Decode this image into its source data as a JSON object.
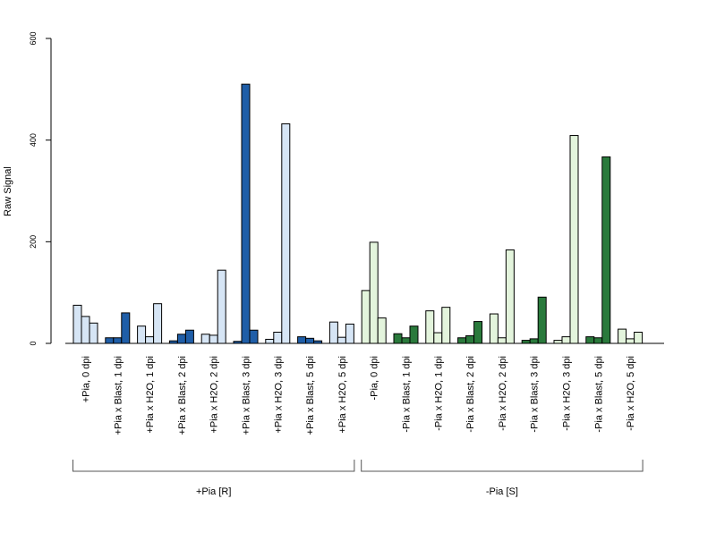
{
  "chart_data": {
    "type": "bar",
    "ylabel": "Raw Signal",
    "ylim": [
      0,
      600
    ],
    "y_ticks": [
      "0",
      "200",
      "400",
      "600"
    ],
    "grid": false,
    "colors": {
      "R_light": "#d6e5f5",
      "R_dark": "#1f5ea8",
      "S_light": "#e3f4dc",
      "S_dark": "#2a7a3c"
    },
    "groups": [
      {
        "label": "+Pia, 0 dpi",
        "values": [
          75,
          53,
          40
        ],
        "color": "R_light",
        "section": 0
      },
      {
        "label": "+Pia x Blast, 1 dpi",
        "values": [
          11,
          11,
          60
        ],
        "color": "R_dark",
        "section": 0
      },
      {
        "label": "+Pia x H2O, 1 dpi",
        "values": [
          34,
          13,
          78
        ],
        "color": "R_light",
        "section": 0
      },
      {
        "label": "+Pia x Blast, 2 dpi",
        "values": [
          5,
          18,
          26
        ],
        "color": "R_dark",
        "section": 0
      },
      {
        "label": "+Pia x H2O, 2 dpi",
        "values": [
          18,
          16,
          144
        ],
        "color": "R_light",
        "section": 0
      },
      {
        "label": "+Pia x Blast, 3 dpi",
        "values": [
          4,
          510,
          26
        ],
        "color": "R_dark",
        "section": 0
      },
      {
        "label": "+Pia x H2O, 3 dpi",
        "values": [
          8,
          22,
          432
        ],
        "color": "R_light",
        "section": 0
      },
      {
        "label": "+Pia x Blast, 5 dpi",
        "values": [
          13,
          10,
          5
        ],
        "color": "R_dark",
        "section": 0
      },
      {
        "label": "+Pia x H2O, 5 dpi",
        "values": [
          42,
          12,
          38
        ],
        "color": "R_light",
        "section": 0
      },
      {
        "label": "-Pia, 0 dpi",
        "values": [
          104,
          199,
          50
        ],
        "color": "S_light",
        "section": 1
      },
      {
        "label": "-Pia x Blast, 1 dpi",
        "values": [
          19,
          11,
          34
        ],
        "color": "S_dark",
        "section": 1
      },
      {
        "label": "-Pia x H2O, 1 dpi",
        "values": [
          64,
          21,
          71
        ],
        "color": "S_light",
        "section": 1
      },
      {
        "label": "-Pia x Blast, 2 dpi",
        "values": [
          11,
          15,
          43
        ],
        "color": "S_dark",
        "section": 1
      },
      {
        "label": "-Pia x H2O, 2 dpi",
        "values": [
          58,
          11,
          184
        ],
        "color": "S_light",
        "section": 1
      },
      {
        "label": "-Pia x Blast, 3 dpi",
        "values": [
          6,
          9,
          91
        ],
        "color": "S_dark",
        "section": 1
      },
      {
        "label": "-Pia x H2O, 3 dpi",
        "values": [
          6,
          13,
          409
        ],
        "color": "S_light",
        "section": 1
      },
      {
        "label": "-Pia x Blast, 5 dpi",
        "values": [
          13,
          11,
          367
        ],
        "color": "S_dark",
        "section": 1
      },
      {
        "label": "-Pia x H2O, 5 dpi",
        "values": [
          28,
          9,
          22
        ],
        "color": "S_light",
        "section": 1
      }
    ],
    "sections": [
      {
        "label": "+Pia [R]"
      },
      {
        "label": "-Pia [S]"
      }
    ]
  }
}
